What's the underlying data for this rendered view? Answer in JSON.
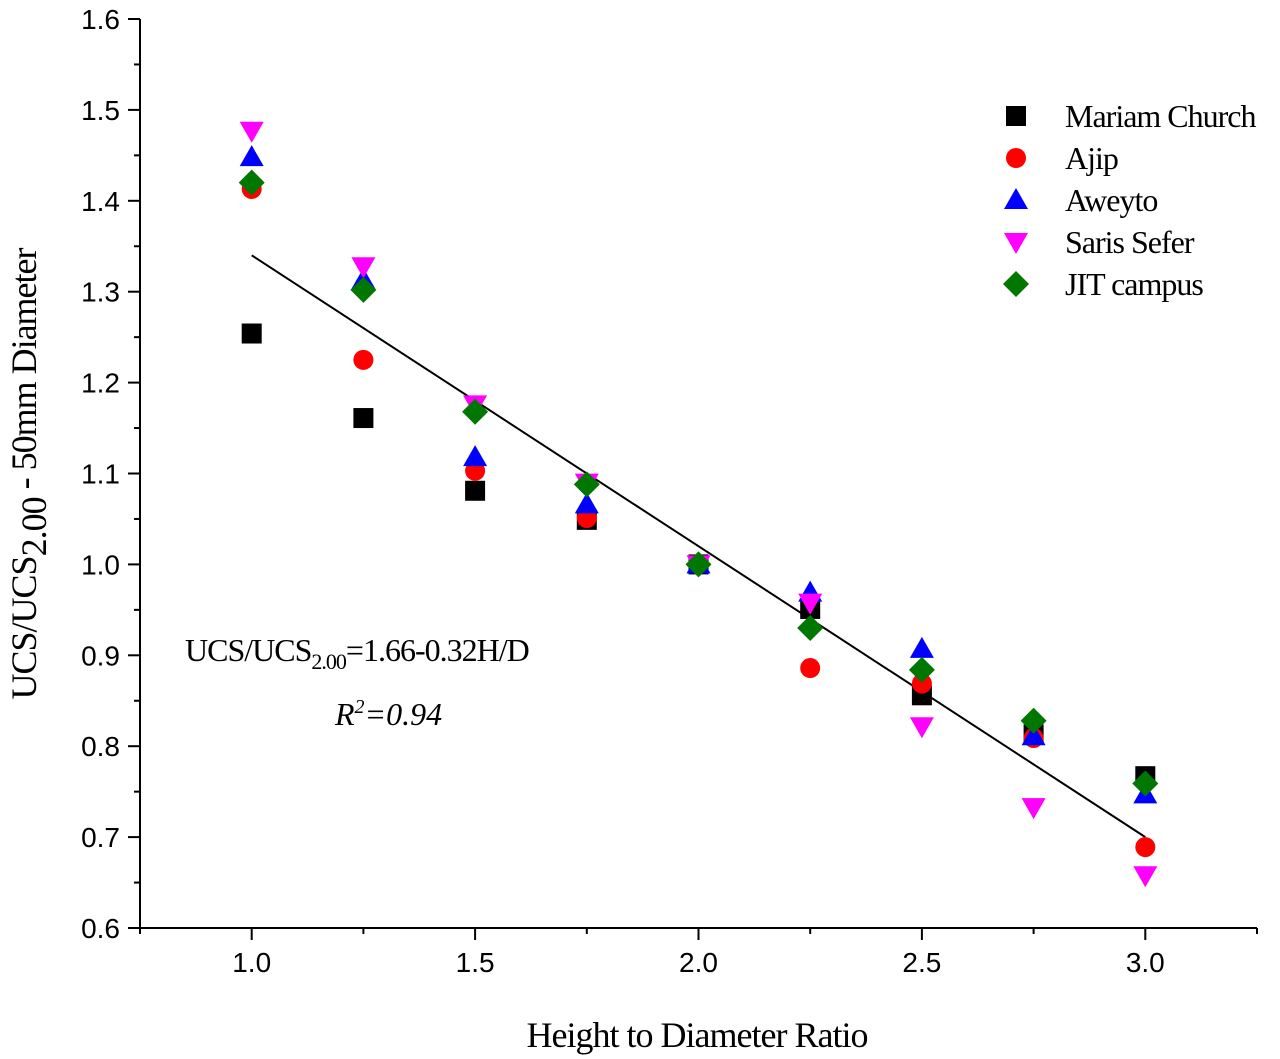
{
  "chart_data": {
    "type": "scatter",
    "xlabel": "Height to Diameter Ratio",
    "ylabel": {
      "main": "UCS/UCS",
      "sub": "2.00",
      "rest": " - 50mm Diameter"
    },
    "xlim": [
      0.75,
      3.25
    ],
    "ylim": [
      0.6,
      1.6
    ],
    "xticks": [
      "1.0",
      "1.5",
      "2.0",
      "2.5",
      "3.0"
    ],
    "yticks": [
      "0.6",
      "0.7",
      "0.8",
      "0.9",
      "1.0",
      "1.1",
      "1.2",
      "1.3",
      "1.4",
      "1.5",
      "1.6"
    ],
    "grid": false,
    "legend_position": "top-right",
    "x": [
      1.0,
      1.25,
      1.5,
      1.75,
      2.0,
      2.25,
      2.5,
      2.75,
      3.0
    ],
    "series": [
      {
        "name": "Mariam Church",
        "marker": "square",
        "color": "#000000",
        "values": [
          1.254,
          1.161,
          1.081,
          1.049,
          1.0,
          0.951,
          0.856,
          0.813,
          0.767
        ]
      },
      {
        "name": "Ajip",
        "marker": "circle",
        "color": "#ff0000",
        "values": [
          1.413,
          1.225,
          1.103,
          1.051,
          1.0,
          0.886,
          0.869,
          0.809,
          0.689
        ]
      },
      {
        "name": "Aweyto",
        "marker": "triangle-up",
        "color": "#0000ff",
        "values": [
          1.448,
          1.313,
          1.118,
          1.066,
          1.0,
          0.969,
          0.907,
          0.811,
          0.747
        ]
      },
      {
        "name": "Saris Sefer",
        "marker": "triangle-down",
        "color": "#ff00ff",
        "values": [
          1.477,
          1.328,
          1.176,
          1.09,
          1.0,
          0.958,
          0.822,
          0.733,
          0.658
        ]
      },
      {
        "name": "JIT campus",
        "marker": "diamond",
        "color": "#007700",
        "values": [
          1.42,
          1.302,
          1.168,
          1.088,
          1.0,
          0.93,
          0.884,
          0.828,
          0.759
        ]
      }
    ],
    "fit_line": {
      "intercept": 1.66,
      "slope": -0.32,
      "x_range": [
        1.0,
        3.0
      ]
    },
    "annotations": {
      "equation": {
        "lhs": "UCS/UCS",
        "sub": "2.00",
        "rhs": "=1.66-0.32H/D"
      },
      "r2": {
        "label": "R",
        "sup": "2",
        "value": "=0.94"
      }
    }
  }
}
